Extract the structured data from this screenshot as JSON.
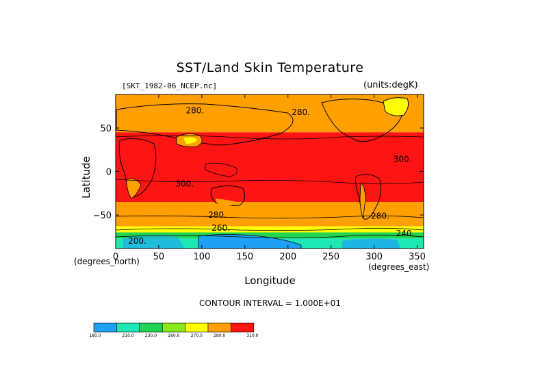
{
  "chart_data": {
    "type": "heatmap",
    "title": "SST/Land Skin Temperature",
    "dataset": "[SKT_1982-06_NCEP.nc]",
    "units": "(units:degK)",
    "xlabel": "Longitude",
    "ylabel": "Latitude",
    "x_unit": "(degrees_east)",
    "y_unit": "(degrees_north)",
    "xlim": [
      0,
      357.5
    ],
    "ylim": [
      -88.5,
      88.5
    ],
    "xticks": [
      0,
      50,
      100,
      150,
      200,
      250,
      300,
      350
    ],
    "yticks": [
      -50,
      0,
      50
    ],
    "contour_interval_text": "CONTOUR INTERVAL = 1.000E+01",
    "contour_labels": [
      {
        "text": "280.",
        "lon": 92,
        "lat": 70
      },
      {
        "text": "280.",
        "lon": 215,
        "lat": 68
      },
      {
        "text": "300.",
        "lon": 80,
        "lat": -14
      },
      {
        "text": "300.",
        "lon": 333,
        "lat": 14
      },
      {
        "text": "280.",
        "lon": 118,
        "lat": -50
      },
      {
        "text": "280.",
        "lon": 307,
        "lat": -51
      },
      {
        "text": "260.",
        "lon": 122,
        "lat": -65
      },
      {
        "text": "240.",
        "lon": 336,
        "lat": -71
      },
      {
        "text": "200.",
        "lon": 25,
        "lat": -80
      }
    ],
    "colorbar": {
      "levels": [
        "180.0",
        "210.0",
        "230.0",
        "260.0",
        "270.0",
        "280.0",
        "310.0"
      ],
      "colors": [
        "#1ea0f5",
        "#1ee8b4",
        "#21d454",
        "#8ce81e",
        "#ffff00",
        "#ffa000",
        "#ff1414"
      ]
    },
    "temperature_bands_degK": [
      {
        "lat_from": 88.5,
        "lat_to": 45,
        "value": 275,
        "color": "#ffa000"
      },
      {
        "lat_from": 45,
        "lat_to": -35,
        "value": 300,
        "color": "#ff1414"
      },
      {
        "lat_from": -35,
        "lat_to": -55,
        "value": 285,
        "color": "#ffa000"
      },
      {
        "lat_from": -55,
        "lat_to": -63,
        "value": 275,
        "color": "#ffa000"
      },
      {
        "lat_from": -63,
        "lat_to": -70,
        "value": 265,
        "color": "#ffff00"
      },
      {
        "lat_from": -70,
        "lat_to": -77,
        "value": 250,
        "color": "#21d454"
      },
      {
        "lat_from": -77,
        "lat_to": -88.5,
        "value": 215,
        "color": "#1ee8b4"
      }
    ]
  }
}
